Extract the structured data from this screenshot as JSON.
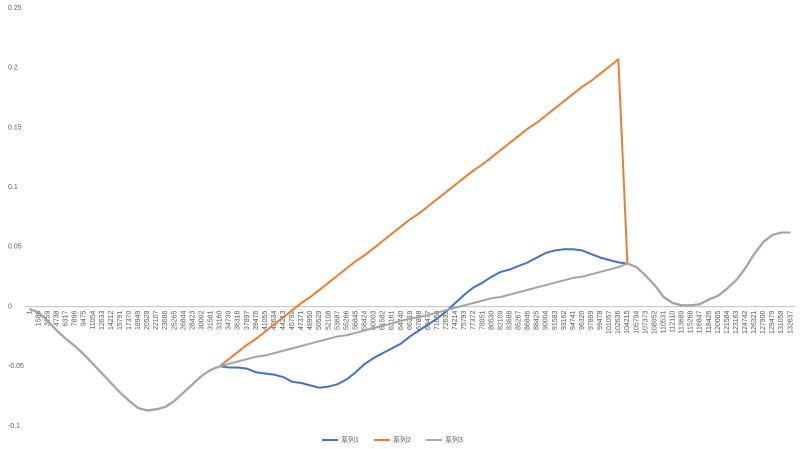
{
  "chart_data": {
    "type": "line",
    "categories": [
      "1",
      "1580",
      "3159",
      "4738",
      "6317",
      "7896",
      "9475",
      "11054",
      "12633",
      "14212",
      "15791",
      "17370",
      "18949",
      "20528",
      "22107",
      "23686",
      "25265",
      "26844",
      "28423",
      "30002",
      "31581",
      "33160",
      "34739",
      "36318",
      "37897",
      "39476",
      "41055",
      "42634",
      "44213",
      "45792",
      "47371",
      "48950",
      "50529",
      "52108",
      "53687",
      "55266",
      "56845",
      "58424",
      "60003",
      "61582",
      "63161",
      "64740",
      "66319",
      "67898",
      "69477",
      "71056",
      "72635",
      "74214",
      "75793",
      "77372",
      "78951",
      "80530",
      "82109",
      "83688",
      "85267",
      "86846",
      "88425",
      "90004",
      "91583",
      "93162",
      "94741",
      "96320",
      "97899",
      "99478",
      "101057",
      "102636",
      "104215",
      "105794",
      "107373",
      "108952",
      "110531",
      "112110",
      "113689",
      "115268",
      "116847",
      "118426",
      "120005",
      "121584",
      "123163",
      "124742",
      "126321",
      "127900",
      "129479",
      "131058",
      "132637"
    ],
    "series": [
      {
        "name": "系列1",
        "color": "#4472c4",
        "values": [
          -0.002,
          -0.005,
          -0.012,
          -0.02,
          -0.027,
          -0.033,
          -0.04,
          -0.048,
          -0.056,
          -0.064,
          -0.072,
          -0.079,
          -0.085,
          -0.087,
          -0.086,
          -0.084,
          -0.079,
          -0.072,
          -0.065,
          -0.058,
          -0.053,
          -0.05,
          -0.051,
          -0.051,
          -0.052,
          -0.055,
          -0.056,
          -0.057,
          -0.059,
          -0.063,
          -0.064,
          -0.066,
          -0.068,
          -0.067,
          -0.065,
          -0.061,
          -0.055,
          -0.048,
          -0.043,
          -0.039,
          -0.035,
          -0.031,
          -0.025,
          -0.02,
          -0.015,
          -0.01,
          -0.004,
          0.003,
          0.01,
          0.016,
          0.02,
          0.025,
          0.029,
          0.031,
          0.034,
          0.037,
          0.041,
          0.045,
          0.047,
          0.048,
          0.048,
          0.047,
          0.044,
          0.041,
          0.039,
          0.037,
          0.036,
          0.033,
          0.026,
          0.018,
          0.008,
          0.003,
          0.001,
          0.001,
          0.002,
          0.006,
          0.009,
          0.015,
          0.022,
          0.032,
          0.044,
          0.054,
          0.06,
          0.062,
          0.062
        ]
      },
      {
        "name": "系列2",
        "color": "#ed7d31",
        "values": [
          -0.002,
          -0.005,
          -0.012,
          -0.02,
          -0.027,
          -0.033,
          -0.04,
          -0.048,
          -0.056,
          -0.064,
          -0.072,
          -0.079,
          -0.085,
          -0.087,
          -0.086,
          -0.084,
          -0.079,
          -0.072,
          -0.065,
          -0.058,
          -0.053,
          -0.05,
          -0.044,
          -0.038,
          -0.032,
          -0.027,
          -0.021,
          -0.015,
          -0.009,
          -0.003,
          0.003,
          0.008,
          0.014,
          0.02,
          0.026,
          0.032,
          0.038,
          0.043,
          0.049,
          0.055,
          0.061,
          0.067,
          0.073,
          0.078,
          0.084,
          0.09,
          0.096,
          0.102,
          0.108,
          0.114,
          0.119,
          0.125,
          0.131,
          0.137,
          0.143,
          0.149,
          0.154,
          0.16,
          0.166,
          0.172,
          0.178,
          0.184,
          0.189,
          0.195,
          0.201,
          0.207,
          0.036,
          0.033,
          0.026,
          0.018,
          0.008,
          0.003,
          0.001,
          0.001,
          0.002,
          0.006,
          0.009,
          0.015,
          0.022,
          0.032,
          0.044,
          0.054,
          0.06,
          0.062,
          0.062
        ]
      },
      {
        "name": "系列3",
        "color": "#a5a5a5",
        "values": [
          -0.002,
          -0.005,
          -0.012,
          -0.02,
          -0.027,
          -0.033,
          -0.04,
          -0.048,
          -0.056,
          -0.064,
          -0.072,
          -0.079,
          -0.085,
          -0.087,
          -0.086,
          -0.084,
          -0.079,
          -0.072,
          -0.065,
          -0.058,
          -0.053,
          -0.05,
          -0.048,
          -0.046,
          -0.044,
          -0.042,
          -0.041,
          -0.039,
          -0.037,
          -0.035,
          -0.033,
          -0.031,
          -0.029,
          -0.027,
          -0.025,
          -0.024,
          -0.022,
          -0.02,
          -0.018,
          -0.016,
          -0.014,
          -0.012,
          -0.01,
          -0.009,
          -0.007,
          -0.005,
          -0.003,
          -0.001,
          0.001,
          0.003,
          0.005,
          0.007,
          0.008,
          0.01,
          0.012,
          0.014,
          0.016,
          0.018,
          0.02,
          0.022,
          0.024,
          0.025,
          0.027,
          0.029,
          0.031,
          0.033,
          0.036,
          0.033,
          0.026,
          0.018,
          0.008,
          0.003,
          0.001,
          0.001,
          0.002,
          0.006,
          0.009,
          0.015,
          0.022,
          0.032,
          0.044,
          0.054,
          0.06,
          0.062,
          0.062
        ]
      }
    ],
    "ylim": [
      -0.1,
      0.25
    ],
    "yticks": [
      -0.1,
      -0.05,
      0,
      0.05,
      0.1,
      0.15,
      0.2,
      0.25
    ],
    "grid": false,
    "legend": "bottom"
  }
}
